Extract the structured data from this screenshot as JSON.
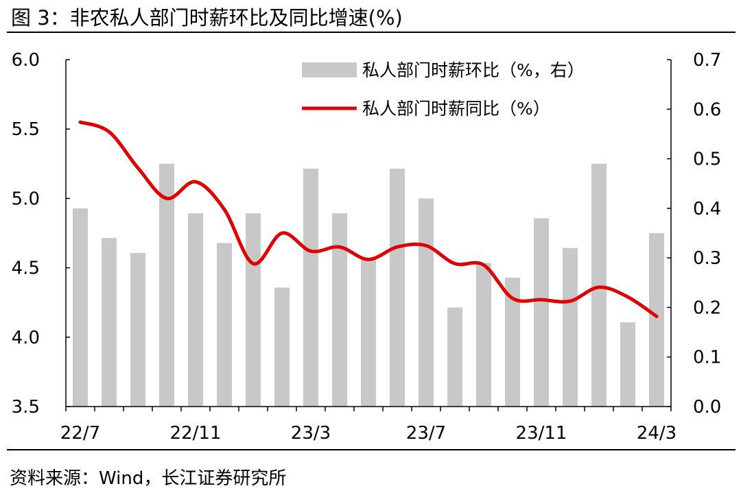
{
  "title": "图 3：非农私人部门时薪环比及同比增速(%)",
  "source": "资料来源：Wind，长江证券研究所",
  "chart_data": {
    "type": "bar+line",
    "x": [
      "22/7",
      "22/8",
      "22/9",
      "22/10",
      "22/11",
      "22/12",
      "23/1",
      "23/2",
      "23/3",
      "23/4",
      "23/5",
      "23/6",
      "23/7",
      "23/8",
      "23/9",
      "23/10",
      "23/11",
      "23/12",
      "24/1",
      "24/2",
      "24/3"
    ],
    "x_tick_labels": [
      "22/7",
      "22/11",
      "23/3",
      "23/7",
      "23/11",
      "24/3"
    ],
    "left_axis": {
      "ylim": [
        3.5,
        6.0
      ],
      "ticks": [
        "3.5",
        "4.0",
        "4.5",
        "5.0",
        "5.5",
        "6.0"
      ]
    },
    "right_axis": {
      "ylim": [
        0.0,
        0.7
      ],
      "ticks": [
        "0.0",
        "0.1",
        "0.2",
        "0.3",
        "0.4",
        "0.5",
        "0.6",
        "0.7"
      ]
    },
    "series": [
      {
        "name": "私人部门时薪环比（%，右）",
        "type": "bar",
        "axis": "right",
        "color": "#c8c8c8",
        "values": [
          0.4,
          0.34,
          0.31,
          0.49,
          0.39,
          0.33,
          0.39,
          0.24,
          0.48,
          0.39,
          0.3,
          0.48,
          0.42,
          0.2,
          0.29,
          0.26,
          0.38,
          0.32,
          0.49,
          0.17,
          0.35
        ]
      },
      {
        "name": "私人部门时薪同比（%）",
        "type": "line",
        "axis": "left",
        "color": "#e00000",
        "values": [
          5.55,
          5.48,
          5.22,
          5.0,
          5.12,
          4.92,
          4.53,
          4.75,
          4.62,
          4.65,
          4.56,
          4.65,
          4.66,
          4.53,
          4.52,
          4.28,
          4.27,
          4.26,
          4.36,
          4.29,
          4.15
        ]
      }
    ],
    "legend_position": "top-right",
    "grid": false
  }
}
